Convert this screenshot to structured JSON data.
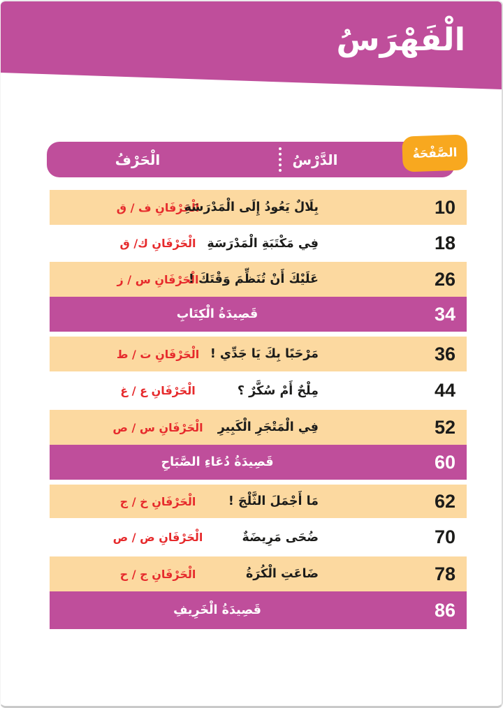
{
  "page_title": "الْفَهْرَسُ",
  "toc_header": {
    "page_col": "الصَّفْحَةُ",
    "lesson_col": "الدَّرْسُ",
    "letter_col": "الْحَرْفُ"
  },
  "table": {
    "rows": [
      {
        "type": "lesson",
        "page": "10",
        "lesson": "بِلَالٌ يَعُودُ إِلَى الْمَدْرَسَةِ",
        "letters": "الْحَرْفَانِ ف / ق",
        "bg": "orange"
      },
      {
        "type": "lesson",
        "page": "18",
        "lesson": "فِي مَكْتَبَةِ الْمَدْرَسَةِ",
        "letters": "الْحَرْفَانِ ك/ ق",
        "bg": "white"
      },
      {
        "type": "lesson",
        "page": "26",
        "lesson": "عَلَيْكَ أَنْ تُنَظِّمَ وَقْتَكَ !",
        "letters": "الْحَرْفَانِ س / ز",
        "bg": "orange"
      },
      {
        "type": "poem",
        "page": "34",
        "lesson": "قَصِيدَةُ الْكِتَابِ",
        "bg": "magenta"
      },
      {
        "type": "lesson",
        "page": "36",
        "lesson": "مَرْحَبًا بِكَ يَا جَدِّي !",
        "letters": "الْحَرْفَانِ ت / ط",
        "bg": "orange"
      },
      {
        "type": "lesson",
        "page": "44",
        "lesson": "مِلْحٌ أَمْ سُكَّرٌ ؟",
        "letters": "الْحَرْفَانِ ع / غ",
        "bg": "white"
      },
      {
        "type": "lesson",
        "page": "52",
        "lesson": "فِي الْمَتْجَرِ الْكَبِيرِ",
        "letters": "الْحَرْفَانِ س / ص",
        "bg": "orange"
      },
      {
        "type": "poem",
        "page": "60",
        "lesson": "قَصِيدَةُ دُعَاءِ الصَّبَاحِ",
        "bg": "magenta"
      },
      {
        "type": "lesson",
        "page": "62",
        "lesson": "مَا أَجْمَلَ الثَّلْجَ !",
        "letters": "الْحَرْفَانِ خ / ج",
        "bg": "orange"
      },
      {
        "type": "lesson",
        "page": "70",
        "lesson": "ضُحَى مَرِيضَةٌ",
        "letters": "الْحَرْفَانِ ض / ص",
        "bg": "white"
      },
      {
        "type": "lesson",
        "page": "78",
        "lesson": "ضَاعَتِ الْكُرَةُ",
        "letters": "الْحَرْفَانِ ج / ح",
        "bg": "orange"
      },
      {
        "type": "poem",
        "page": "86",
        "lesson": "قَصِيدَةُ الْخَرِيفِ",
        "bg": "magenta"
      }
    ]
  },
  "colors": {
    "magenta": "#bf4e9b",
    "orange_row": "#fcd9a0",
    "badge_orange": "#f8a81f",
    "letter_red": "#e62a2c",
    "text_black": "#1c1c1a"
  }
}
